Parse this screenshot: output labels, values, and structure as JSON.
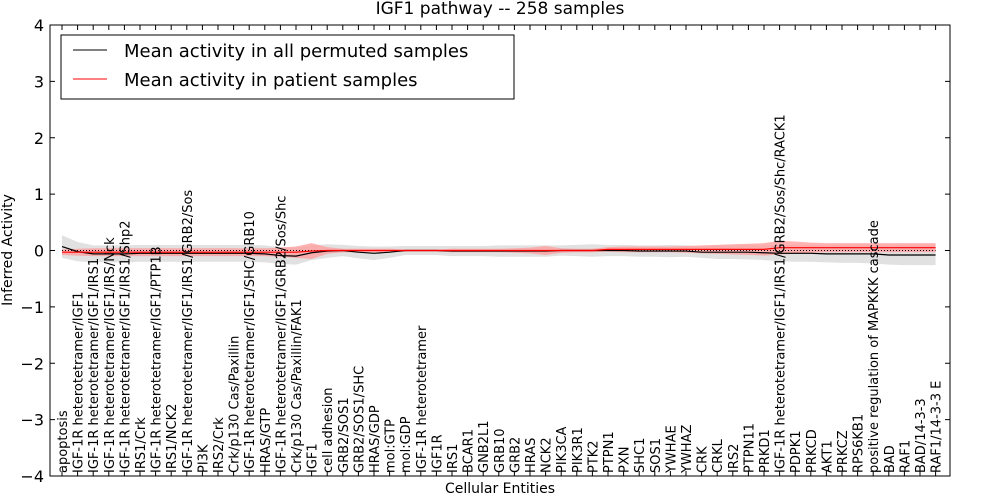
{
  "chart_data": {
    "type": "line",
    "title": "IGF1 pathway -- 258 samples",
    "xlabel": "Cellular Entities",
    "ylabel": "Inferred Activity",
    "ylim": [
      -4,
      4
    ],
    "yticks": [
      "-4",
      "-3",
      "-2",
      "-1",
      "0",
      "1",
      "2",
      "3",
      "4"
    ],
    "legend_placement": "top-left",
    "categories": [
      "apoptosis",
      "IGF-1R heterotetramer/IGF1",
      "IGF-1R heterotetramer/IGF1/IRS1",
      "IGF-1R heterotetramer/IGF1/IRS/Nck",
      "IGF-1R heterotetramer/IGF1/IRS1/Shp2",
      "IRS1/Crk",
      "IGF-1R heterotetramer/IGF1/PTP1B",
      "IRS1/NCK2",
      "IGF-1R heterotetramer/IGF1/IRS1/GRB2/Sos",
      "PI3K",
      "IRS2/Crk",
      "Crk/p130 Cas/Paxillin",
      "IGF-1R heterotetramer/IGF1/SHC/GRB10",
      "HRAS/GTP",
      "IGF-1R heterotetramer/IGF1/GRB2/Sos/Shc",
      "Crk/p130 Cas/Paxillin/FAK1",
      "IGF1",
      "cell adhesion",
      "GRB2/SOS1",
      "GRB2/SOS1/SHC",
      "HRAS/GDP",
      "mol:GTP",
      "mol:GDP",
      "IGF-1R heterotetramer",
      "IGF1R",
      "IRS1",
      "BCAR1",
      "GNB2L1",
      "GRB10",
      "GRB2",
      "HRAS",
      "NCK2",
      "PIK3CA",
      "PIK3R1",
      "PTK2",
      "PTPN1",
      "PXN",
      "SHC1",
      "SOS1",
      "YWHAE",
      "YWHAZ",
      "CRK",
      "CRKL",
      "IRS2",
      "PTPN11",
      "PRKD1",
      "IGF-1R heterotetramer/IGF1/IRS1/GRB2/Sos/Shc/RACK1",
      "PDPK1",
      "PRKCD",
      "AKT1",
      "PRKCZ",
      "RPS6KB1",
      "positive regulation of MAPKKK cascade",
      "BAD",
      "RAF1",
      "BAD/14-3-3",
      "RAF1/14-3-3 E"
    ],
    "series": [
      {
        "name": "Mean activity in all permuted samples",
        "color": "#000000",
        "band_color": "#d9d9d9",
        "values": [
          0.07,
          -0.02,
          -0.06,
          -0.06,
          -0.06,
          -0.05,
          -0.05,
          -0.05,
          -0.05,
          -0.05,
          -0.05,
          -0.05,
          -0.05,
          -0.06,
          -0.09,
          -0.1,
          -0.04,
          -0.01,
          0,
          -0.03,
          -0.05,
          -0.03,
          0,
          0,
          0,
          -0.01,
          -0.01,
          -0.01,
          -0.01,
          -0.01,
          -0.01,
          -0.01,
          0,
          0,
          0,
          0,
          0,
          -0.01,
          -0.01,
          -0.01,
          -0.01,
          -0.03,
          -0.03,
          -0.03,
          -0.03,
          -0.04,
          -0.05,
          -0.05,
          -0.05,
          -0.06,
          -0.06,
          -0.06,
          -0.06,
          -0.08,
          -0.08,
          -0.08,
          -0.08
        ],
        "spread": [
          0.2,
          0.17,
          0.15,
          0.15,
          0.15,
          0.15,
          0.15,
          0.15,
          0.15,
          0.15,
          0.15,
          0.15,
          0.15,
          0.15,
          0.15,
          0.15,
          0.13,
          0.12,
          0.1,
          0.11,
          0.12,
          0.1,
          0.08,
          0.08,
          0.08,
          0.09,
          0.09,
          0.09,
          0.1,
          0.1,
          0.1,
          0.1,
          0.09,
          0.1,
          0.11,
          0.1,
          0.1,
          0.1,
          0.1,
          0.11,
          0.1,
          0.1,
          0.12,
          0.12,
          0.13,
          0.13,
          0.14,
          0.15,
          0.15,
          0.15,
          0.16,
          0.16,
          0.17,
          0.17,
          0.18,
          0.18,
          0.18
        ]
      },
      {
        "name": "Mean activity in patient samples",
        "color": "#ff0000",
        "band_color": "#ff9a9a",
        "values": [
          -0.03,
          -0.03,
          -0.03,
          -0.03,
          -0.03,
          -0.03,
          -0.03,
          -0.03,
          -0.03,
          -0.03,
          -0.03,
          -0.03,
          -0.03,
          -0.03,
          -0.03,
          -0.03,
          -0.01,
          0,
          0,
          0,
          0,
          0,
          0,
          0,
          0,
          0,
          0,
          0,
          0,
          0,
          0,
          0,
          0,
          0,
          0,
          0.02,
          0.02,
          0.02,
          0.02,
          0.02,
          0.02,
          0.02,
          0.02,
          0.02,
          0.02,
          0.02,
          0.05,
          0.05,
          0.05,
          0.05,
          0.05,
          0.05,
          0.05,
          0.05,
          0.05,
          0.05,
          0.05
        ],
        "spread": [
          0.05,
          0.06,
          0.07,
          0.07,
          0.07,
          0.07,
          0.07,
          0.07,
          0.07,
          0.07,
          0.07,
          0.07,
          0.07,
          0.07,
          0.08,
          0.1,
          0.14,
          0.06,
          0.03,
          0.03,
          0.03,
          0.03,
          0.02,
          0.02,
          0.02,
          0.03,
          0.03,
          0.03,
          0.03,
          0.04,
          0.05,
          0.08,
          0.04,
          0.03,
          0.03,
          0.04,
          0.05,
          0.05,
          0.05,
          0.05,
          0.06,
          0.07,
          0.08,
          0.09,
          0.1,
          0.11,
          0.12,
          0.11,
          0.09,
          0.08,
          0.08,
          0.08,
          0.08,
          0.08,
          0.08,
          0.08,
          0.08
        ]
      }
    ]
  }
}
